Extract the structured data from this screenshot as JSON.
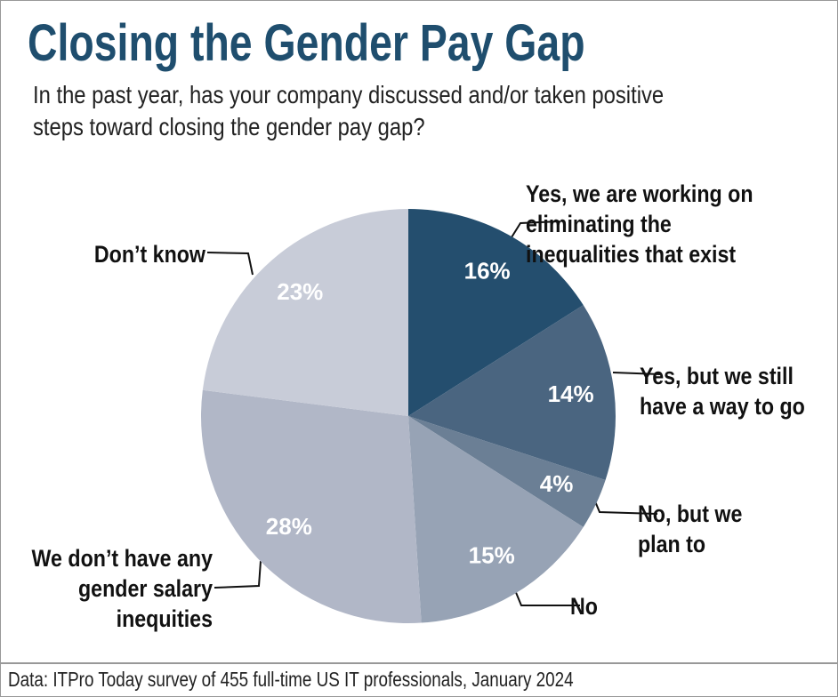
{
  "chart_data": {
    "type": "pie",
    "title": "Closing the Gender Pay Gap",
    "subtitle": "In the past year, has your company discussed and/or taken positive steps toward closing the gender pay gap?",
    "categories": [
      "Yes, we are working on eliminating the inequalities that exist",
      "Yes, but we still have a way to go",
      "No, but we plan to",
      "No",
      "We don’t have any gender salary inequities",
      "Don’t know"
    ],
    "values": [
      16,
      14,
      4,
      15,
      28,
      23
    ],
    "value_labels": [
      "16%",
      "14%",
      "4%",
      "15%",
      "28%",
      "23%"
    ],
    "colors": [
      "#244e6e",
      "#4a6580",
      "#6b7f95",
      "#97a3b5",
      "#b1b7c7",
      "#c8ccd8"
    ],
    "source": "Data: ITPro Today survey of 455 full-time US IT professionals, January 2024"
  }
}
